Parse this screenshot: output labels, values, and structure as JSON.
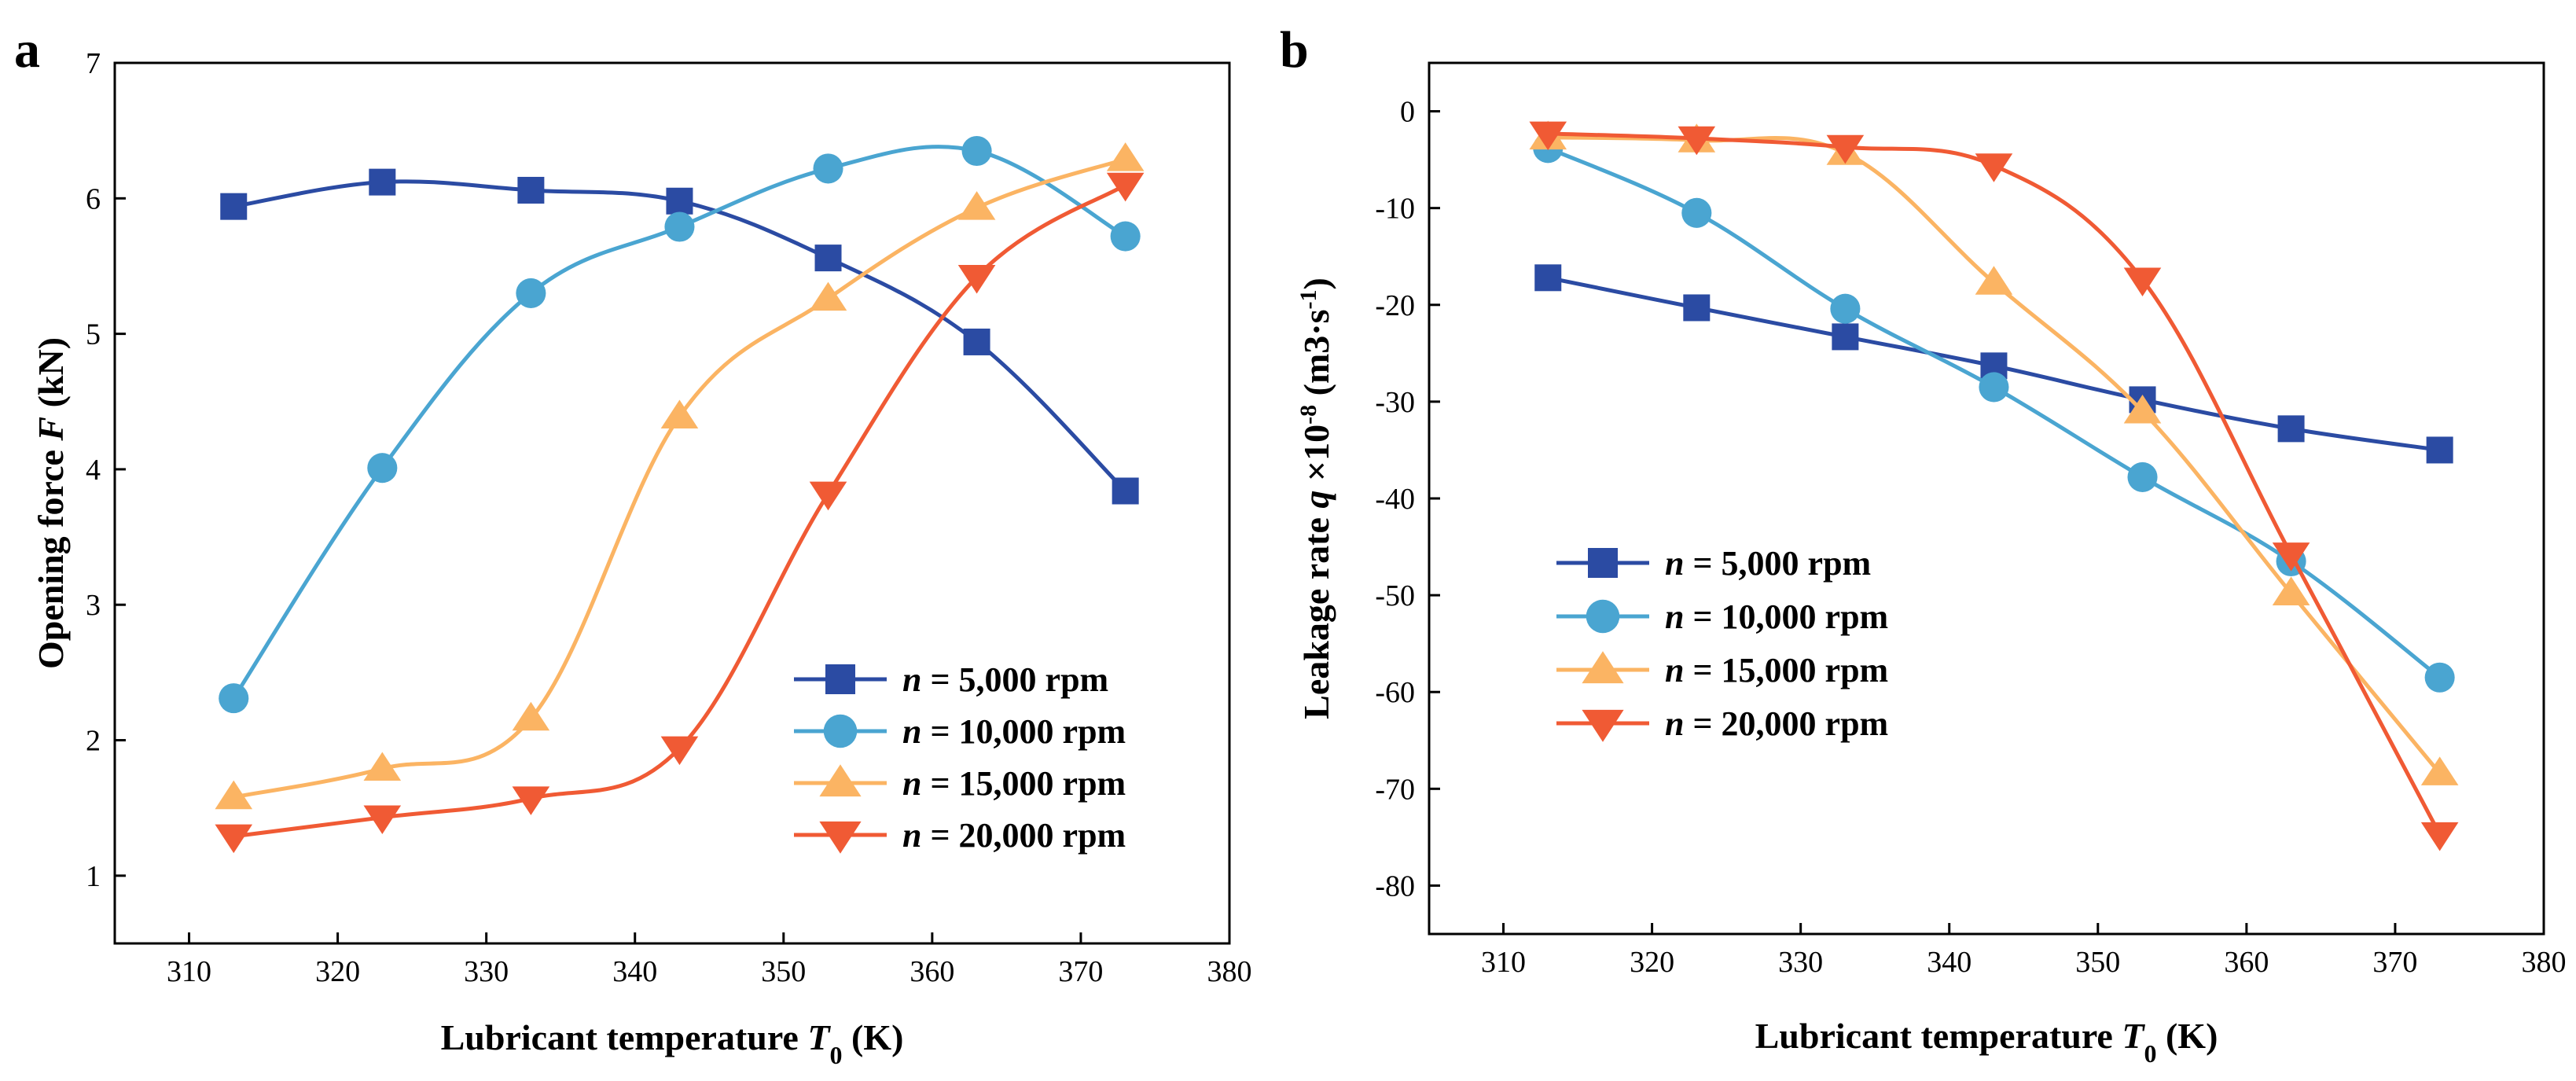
{
  "figure": {
    "series_style": [
      {
        "color": "#2b4ba3",
        "marker": "square"
      },
      {
        "color": "#4aa5d1",
        "marker": "circle"
      },
      {
        "color": "#fbb463",
        "marker": "triangle-up"
      },
      {
        "color": "#f05a34",
        "marker": "triangle-down"
      }
    ]
  },
  "chart_data": [
    {
      "panel": "a",
      "type": "line",
      "title": "",
      "xlabel_prefix": "Lubricant temperature ",
      "xlabel_var": "T",
      "xlabel_sub": "0",
      "xlabel_unit": " (K)",
      "ylabel_prefix": "Opening force ",
      "ylabel_var": "F",
      "ylabel_unit": " (kN)",
      "xlim": [
        305,
        380
      ],
      "ylim": [
        0.5,
        7
      ],
      "xticks": [
        310,
        320,
        330,
        340,
        350,
        360,
        370,
        380
      ],
      "yticks": [
        1,
        2,
        3,
        4,
        5,
        6,
        7
      ],
      "x": [
        313,
        323,
        333,
        343,
        353,
        363,
        373
      ],
      "legend_position": "bottom-right",
      "series": [
        {
          "name": "n = 5,000 rpm",
          "var": "n",
          "rest": " = 5,000 rpm",
          "values": [
            5.94,
            6.12,
            6.06,
            5.98,
            5.56,
            4.94,
            3.84
          ]
        },
        {
          "name": "n = 10,000 rpm",
          "var": "n",
          "rest": " = 10,000 rpm",
          "values": [
            2.31,
            4.01,
            5.3,
            5.79,
            6.22,
            6.35,
            5.72
          ]
        },
        {
          "name": "n = 15,000 rpm",
          "var": "n",
          "rest": " = 15,000 rpm",
          "values": [
            1.58,
            1.79,
            2.16,
            4.39,
            5.26,
            5.93,
            6.29
          ]
        },
        {
          "name": "n = 20,000 rpm",
          "var": "n",
          "rest": " = 20,000 rpm",
          "values": [
            1.29,
            1.43,
            1.57,
            1.94,
            3.82,
            5.42,
            6.1
          ]
        }
      ]
    },
    {
      "panel": "b",
      "type": "line",
      "title": "",
      "xlabel_prefix": "Lubricant temperature ",
      "xlabel_var": "T",
      "xlabel_sub": "0",
      "xlabel_unit": " (K)",
      "ylabel_prefix": "Leakage rate ",
      "ylabel_var": "q",
      "ylabel_mid": " ×10",
      "ylabel_exp": "-8",
      "ylabel_unit_a": " (m3·s",
      "ylabel_unit_exp": "-1",
      "ylabel_unit_b": ")",
      "xlim": [
        305,
        380
      ],
      "ylim": [
        -85,
        5
      ],
      "xticks": [
        310,
        320,
        330,
        340,
        350,
        360,
        370,
        380
      ],
      "yticks": [
        0,
        -10,
        -20,
        -30,
        -40,
        -50,
        -60,
        -70,
        -80
      ],
      "x": [
        313,
        323,
        333,
        343,
        353,
        363,
        373
      ],
      "legend_position": "middle-left",
      "series": [
        {
          "name": "n = 5,000 rpm",
          "var": "n",
          "rest": " = 5,000 rpm",
          "values": [
            -17.2,
            -20.3,
            -23.3,
            -26.3,
            -29.8,
            -32.8,
            -35.0
          ]
        },
        {
          "name": "n = 10,000 rpm",
          "var": "n",
          "rest": " = 10,000 rpm",
          "values": [
            -3.8,
            -10.5,
            -20.4,
            -28.5,
            -37.8,
            -46.5,
            -58.5
          ]
        },
        {
          "name": "n = 15,000 rpm",
          "var": "n",
          "rest": " = 15,000 rpm",
          "values": [
            -2.7,
            -3.0,
            -4.3,
            -17.7,
            -31.0,
            -49.8,
            -68.4
          ]
        },
        {
          "name": "n = 20,000 rpm",
          "var": "n",
          "rest": " = 20,000 rpm",
          "values": [
            -2.3,
            -2.8,
            -3.7,
            -5.6,
            -17.4,
            -45.8,
            -74.7
          ]
        }
      ]
    }
  ]
}
